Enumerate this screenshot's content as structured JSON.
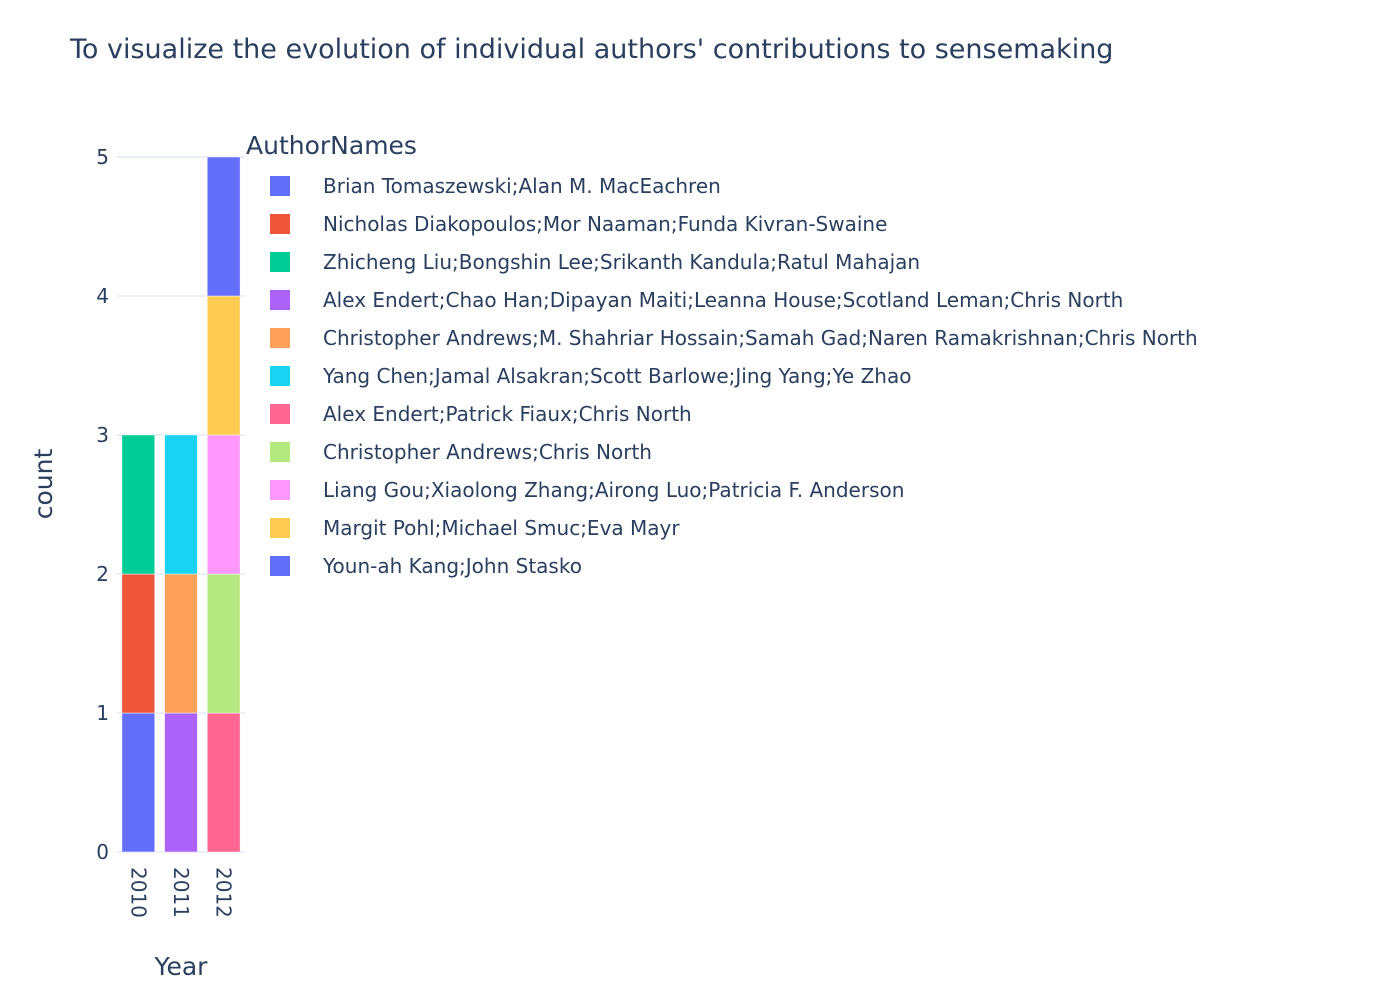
{
  "chart_data": {
    "type": "bar",
    "barmode": "stack",
    "title": "To visualize the evolution of individual authors' contributions to sensemaking",
    "xlabel": "Year",
    "ylabel": "count",
    "categories": [
      "2010",
      "2011",
      "2012"
    ],
    "ylim": [
      0,
      5
    ],
    "yticks": [
      0,
      1,
      2,
      3,
      4,
      5
    ],
    "grid": true,
    "legend_title": "AuthorNames",
    "legend_placement": "right",
    "series": [
      {
        "name": "Brian Tomaszewski;Alan M. MacEachren",
        "color": "#636efa",
        "values": [
          1,
          0,
          0
        ]
      },
      {
        "name": "Nicholas Diakopoulos;Mor Naaman;Funda Kivran-Swaine",
        "color": "#EF553B",
        "values": [
          1,
          0,
          0
        ]
      },
      {
        "name": "Zhicheng Liu;Bongshin Lee;Srikanth Kandula;Ratul Mahajan",
        "color": "#00cc96",
        "values": [
          1,
          0,
          0
        ]
      },
      {
        "name": "Alex Endert;Chao Han;Dipayan Maiti;Leanna House;Scotland Leman;Chris North",
        "color": "#ab63fa",
        "values": [
          0,
          1,
          0
        ]
      },
      {
        "name": "Christopher Andrews;M. Shahriar Hossain;Samah Gad;Naren Ramakrishnan;Chris North",
        "color": "#FFA15A",
        "values": [
          0,
          1,
          0
        ]
      },
      {
        "name": "Yang Chen;Jamal Alsakran;Scott Barlowe;Jing Yang;Ye Zhao",
        "color": "#19d3f3",
        "values": [
          0,
          1,
          0
        ]
      },
      {
        "name": "Alex Endert;Patrick Fiaux;Chris North",
        "color": "#FF6692",
        "values": [
          0,
          0,
          1
        ]
      },
      {
        "name": "Christopher Andrews;Chris North",
        "color": "#B6E880",
        "values": [
          0,
          0,
          1
        ]
      },
      {
        "name": "Liang Gou;Xiaolong Zhang;Airong Luo;Patricia F. Anderson",
        "color": "#FF97FF",
        "values": [
          0,
          0,
          1
        ]
      },
      {
        "name": "Margit Pohl;Michael Smuc;Eva Mayr",
        "color": "#FECB52",
        "values": [
          0,
          0,
          1
        ]
      },
      {
        "name": "Youn-ah Kang;John Stasko",
        "color": "#636efa",
        "values": [
          0,
          0,
          1
        ]
      }
    ]
  }
}
